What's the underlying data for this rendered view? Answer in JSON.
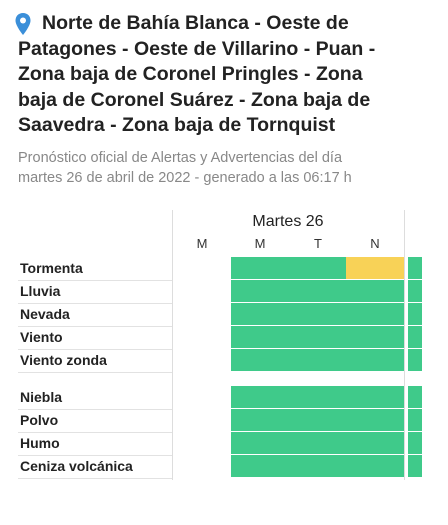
{
  "header": {
    "title_lines": [
      "Norte de Bahía Blanca - Oeste de",
      "Patagones - Oeste de Villarino - Puan -",
      "Zona baja de Coronel Pringles - Zona",
      "baja de Coronel Suárez - Zona baja de",
      "Saavedra - Zona baja de Tornquist"
    ],
    "subtitle_lines": [
      "Pronóstico oficial de Alertas y Advertencias del día",
      "martes 26 de abril de 2022 - generado a las 06:17 h"
    ]
  },
  "table": {
    "day": "Martes 26",
    "periods": [
      "M",
      "M",
      "T",
      "N"
    ],
    "groups": [
      [
        {
          "label": "Tormenta",
          "cells": [
            null,
            "#3fca8a",
            "#3fca8a",
            "#f8d257"
          ],
          "next": "#3fca8a"
        },
        {
          "label": "Lluvia",
          "cells": [
            null,
            "#3fca8a",
            "#3fca8a",
            "#3fca8a"
          ],
          "next": "#3fca8a"
        },
        {
          "label": "Nevada",
          "cells": [
            null,
            "#3fca8a",
            "#3fca8a",
            "#3fca8a"
          ],
          "next": "#3fca8a"
        },
        {
          "label": "Viento",
          "cells": [
            null,
            "#3fca8a",
            "#3fca8a",
            "#3fca8a"
          ],
          "next": "#3fca8a"
        },
        {
          "label": "Viento zonda",
          "cells": [
            null,
            "#3fca8a",
            "#3fca8a",
            "#3fca8a"
          ],
          "next": "#3fca8a"
        }
      ],
      [
        {
          "label": "Niebla",
          "cells": [
            null,
            "#3fca8a",
            "#3fca8a",
            "#3fca8a"
          ],
          "next": "#3fca8a"
        },
        {
          "label": "Polvo",
          "cells": [
            null,
            "#3fca8a",
            "#3fca8a",
            "#3fca8a"
          ],
          "next": "#3fca8a"
        },
        {
          "label": "Humo",
          "cells": [
            null,
            "#3fca8a",
            "#3fca8a",
            "#3fca8a"
          ],
          "next": "#3fca8a"
        },
        {
          "label": "Ceniza volcánica",
          "cells": [
            null,
            "#3fca8a",
            "#3fca8a",
            "#3fca8a"
          ],
          "next": "#3fca8a"
        }
      ]
    ]
  }
}
